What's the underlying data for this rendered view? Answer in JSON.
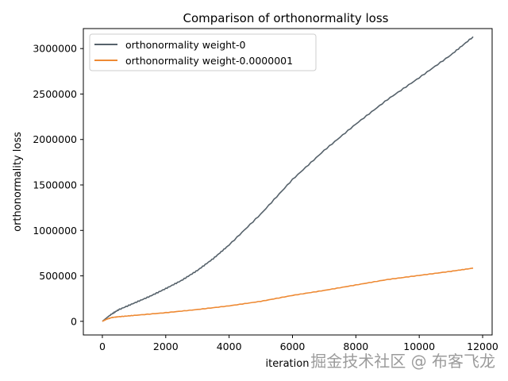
{
  "chart_data": {
    "type": "line",
    "title": "Comparison of orthonormality loss",
    "xlabel": "iteration",
    "ylabel": "orthonormality loss",
    "xlim": [
      -600,
      12300
    ],
    "ylim": [
      -150000,
      3220000
    ],
    "xticks": [
      0,
      2000,
      4000,
      6000,
      8000,
      10000,
      12000
    ],
    "xtick_labels": [
      "0",
      "2000",
      "4000",
      "6000",
      "8000",
      "10000",
      "12000"
    ],
    "yticks": [
      0,
      500000,
      1000000,
      1500000,
      2000000,
      2500000,
      3000000
    ],
    "ytick_labels": [
      "0",
      "500000",
      "1000000",
      "1500000",
      "2000000",
      "2500000",
      "3000000"
    ],
    "grid": false,
    "legend_position": "top-left",
    "series": [
      {
        "name": "orthonormality weight-0",
        "color": "#56626b",
        "x": [
          0,
          250,
          500,
          1000,
          1500,
          2000,
          2500,
          3000,
          3500,
          4000,
          5000,
          6000,
          7000,
          8000,
          9000,
          10000,
          11000,
          11700
        ],
        "y": [
          0,
          70000,
          125000,
          200000,
          275000,
          360000,
          450000,
          560000,
          690000,
          840000,
          1180000,
          1560000,
          1880000,
          2170000,
          2440000,
          2680000,
          2930000,
          3130000
        ]
      },
      {
        "name": "orthonormality weight-0.0000001",
        "color": "#ee8a34",
        "x": [
          0,
          150,
          300,
          500,
          1000,
          2000,
          3000,
          4000,
          5000,
          6000,
          7000,
          8000,
          9000,
          10000,
          11000,
          11700
        ],
        "y": [
          0,
          25000,
          42000,
          50000,
          65000,
          95000,
          130000,
          170000,
          220000,
          285000,
          340000,
          400000,
          460000,
          505000,
          550000,
          585000
        ]
      }
    ]
  },
  "watermark": "掘金技术社区 @ 布客飞龙"
}
